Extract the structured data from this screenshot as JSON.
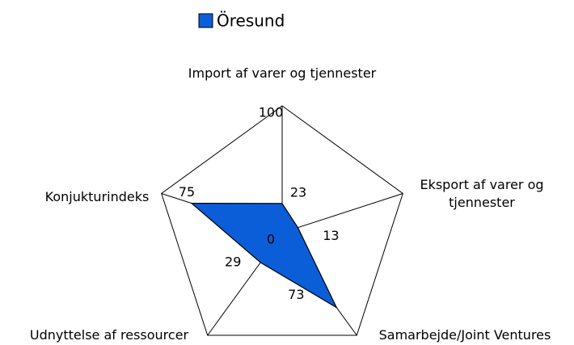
{
  "chart_data": {
    "type": "radar",
    "categories": [
      "Import af varer og tjennester",
      "Eksport af varer og tjennester",
      "Samarbejde/Joint Ventures",
      "Udnyttelse af ressourcer",
      "Konjukturindeks"
    ],
    "series": [
      {
        "name": "Öresund",
        "color": "#0b5ed7",
        "values": [
          23,
          13,
          73,
          29,
          75
        ]
      }
    ],
    "ylim": [
      0,
      100
    ],
    "yticks": [
      0,
      100
    ],
    "legend": "top"
  }
}
